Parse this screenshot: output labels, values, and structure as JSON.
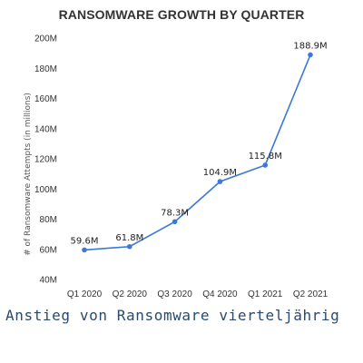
{
  "caption": "Anstieg von Ransomware vierteljährig",
  "colors": {
    "line": "#3c78d8",
    "point": "#3c78d8",
    "caption": "#2a4a6e"
  },
  "chart_data": {
    "type": "line",
    "title": "RANSOMWARE GROWTH BY QUARTER",
    "xlabel": "",
    "ylabel": "# of Ransomware Attempts (in millions)",
    "categories": [
      "Q1 2020",
      "Q2 2020",
      "Q3 2020",
      "Q4 2020",
      "Q1 2021",
      "Q2 2021"
    ],
    "values": [
      59.6,
      61.8,
      78.3,
      104.9,
      115.8,
      188.9
    ],
    "data_labels": [
      "59.6M",
      "61.8M",
      "78.3M",
      "104.9M",
      "115.8M",
      "188.9M"
    ],
    "ylim": [
      40,
      200
    ],
    "yticks": [
      40,
      60,
      80,
      100,
      120,
      140,
      160,
      180,
      200
    ],
    "ytick_labels": [
      "40M",
      "60M",
      "80M",
      "100M",
      "120M",
      "140M",
      "160M",
      "180M",
      "200M"
    ],
    "grid": false,
    "legend": "none"
  }
}
